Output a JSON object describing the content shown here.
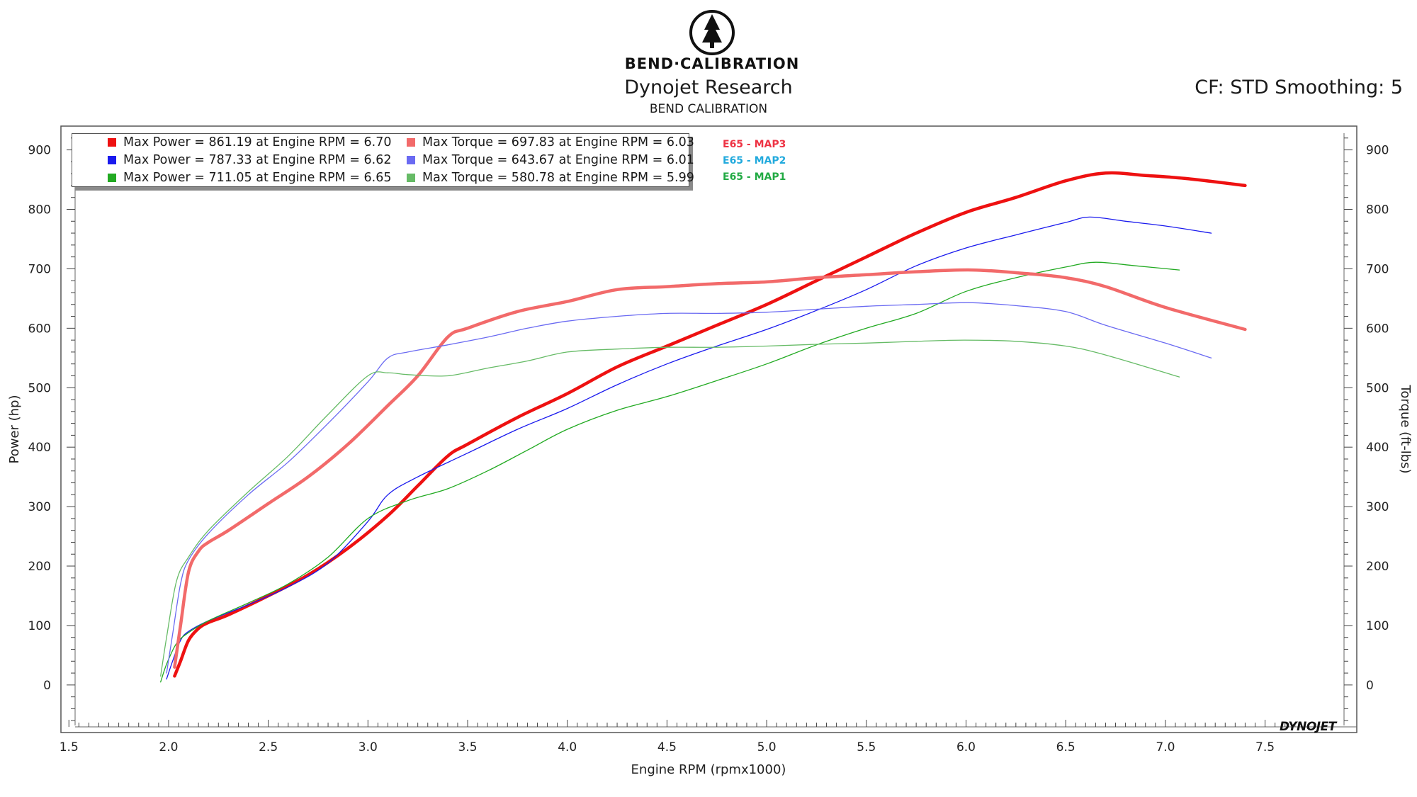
{
  "header": {
    "brand": "BEND·CALIBRATION",
    "title": "Dynojet Research",
    "subtitle": "BEND CALIBRATION",
    "correction": "CF: STD Smoothing: 5",
    "footer_logo": "DYNOJET"
  },
  "legend": {
    "power": [
      {
        "label": "Max Power = 861.19 at Engine RPM = 6.70",
        "color": "#ee1111"
      },
      {
        "label": "Max Power = 787.33 at Engine RPM = 6.62",
        "color": "#1a1aee"
      },
      {
        "label": "Max Power = 711.05 at Engine RPM = 6.65",
        "color": "#22aa22"
      }
    ],
    "torque": [
      {
        "label": "Max Torque = 697.83 at Engine RPM = 6.03",
        "color": "#f26a6a"
      },
      {
        "label": "Max Torque = 643.67 at Engine RPM = 6.01",
        "color": "#6a6af2"
      },
      {
        "label": "Max Torque = 580.78 at Engine RPM = 5.99",
        "color": "#66bb66"
      }
    ]
  },
  "map_labels": [
    {
      "text": "E65 - MAP3",
      "color": "#ee3344"
    },
    {
      "text": "E65 - MAP2",
      "color": "#22aadd"
    },
    {
      "text": "E65 - MAP1",
      "color": "#22aa44"
    }
  ],
  "chart_data": {
    "type": "line",
    "title": "Dynojet Research",
    "xlabel": "Engine RPM (rpmx1000)",
    "ylabel": "Power (hp)",
    "y2label": "Torque (ft-lbs)",
    "xlim": [
      1.46,
      7.96
    ],
    "ylim": [
      -80,
      940
    ],
    "xticks": [
      1.5,
      2.0,
      2.5,
      3.0,
      3.5,
      4.0,
      4.5,
      5.0,
      5.5,
      6.0,
      6.5,
      7.0,
      7.5
    ],
    "xtick_labels": [
      "1.5",
      "2.0",
      "2.5",
      "3.0",
      "3.5",
      "4.0",
      "4.5",
      "5.0",
      "5.5",
      "6.0",
      "6.5",
      "7.0",
      "7.5"
    ],
    "yticks": [
      0,
      100,
      200,
      300,
      400,
      500,
      600,
      700,
      800,
      900
    ],
    "ytick_labels": [
      "0",
      "100",
      "200",
      "300",
      "400",
      "500",
      "600",
      "700",
      "800",
      "900"
    ],
    "grid": true,
    "series": [
      {
        "name": "E65 - MAP3 Power",
        "color": "#ee1111",
        "width": 4.5,
        "x": [
          2.03,
          2.06,
          2.1,
          2.15,
          2.2,
          2.3,
          2.5,
          2.7,
          2.9,
          3.1,
          3.25,
          3.4,
          3.5,
          3.75,
          4.0,
          4.25,
          4.5,
          4.75,
          5.0,
          5.25,
          5.5,
          5.75,
          6.0,
          6.25,
          6.5,
          6.7,
          6.9,
          7.1,
          7.4
        ],
        "y": [
          15,
          40,
          75,
          95,
          105,
          118,
          150,
          185,
          230,
          285,
          335,
          385,
          405,
          450,
          490,
          535,
          570,
          605,
          640,
          680,
          720,
          760,
          795,
          820,
          848,
          861,
          857,
          852,
          840
        ]
      },
      {
        "name": "E65 - MAP2 Power",
        "color": "#1a1aee",
        "width": 1.3,
        "x": [
          1.99,
          2.02,
          2.06,
          2.1,
          2.2,
          2.4,
          2.6,
          2.8,
          3.0,
          3.1,
          3.25,
          3.5,
          3.75,
          4.0,
          4.25,
          4.5,
          4.75,
          5.0,
          5.25,
          5.5,
          5.75,
          6.0,
          6.25,
          6.5,
          6.62,
          6.8,
          7.0,
          7.23
        ],
        "y": [
          10,
          40,
          75,
          90,
          108,
          135,
          165,
          205,
          275,
          320,
          350,
          390,
          430,
          465,
          505,
          540,
          570,
          598,
          630,
          665,
          705,
          735,
          757,
          778,
          787,
          780,
          772,
          760
        ]
      },
      {
        "name": "E65 - MAP1 Power",
        "color": "#22aa22",
        "width": 1.3,
        "x": [
          1.96,
          1.99,
          2.04,
          2.1,
          2.2,
          2.4,
          2.6,
          2.8,
          3.0,
          3.2,
          3.4,
          3.6,
          3.8,
          4.0,
          4.25,
          4.5,
          4.75,
          5.0,
          5.25,
          5.5,
          5.75,
          6.0,
          6.25,
          6.5,
          6.65,
          6.85,
          7.07
        ],
        "y": [
          5,
          35,
          70,
          88,
          108,
          138,
          170,
          215,
          280,
          310,
          330,
          360,
          395,
          430,
          462,
          485,
          512,
          540,
          572,
          600,
          625,
          662,
          685,
          703,
          711,
          705,
          698
        ]
      },
      {
        "name": "E65 - MAP3 Torque",
        "color": "#f26a6a",
        "width": 4.5,
        "x": [
          2.03,
          2.06,
          2.1,
          2.15,
          2.2,
          2.3,
          2.5,
          2.7,
          2.9,
          3.1,
          3.25,
          3.4,
          3.5,
          3.75,
          4.0,
          4.25,
          4.5,
          4.75,
          5.0,
          5.25,
          5.5,
          5.75,
          6.03,
          6.3,
          6.5,
          6.7,
          7.0,
          7.4
        ],
        "y": [
          30,
          100,
          190,
          225,
          240,
          260,
          305,
          350,
          405,
          470,
          520,
          585,
          600,
          628,
          645,
          665,
          670,
          675,
          678,
          685,
          690,
          695,
          698,
          692,
          685,
          670,
          635,
          598
        ]
      },
      {
        "name": "E65 - MAP2 Torque",
        "color": "#6a6af2",
        "width": 1.3,
        "x": [
          1.99,
          2.02,
          2.06,
          2.1,
          2.2,
          2.4,
          2.6,
          2.8,
          3.0,
          3.1,
          3.2,
          3.4,
          3.6,
          3.8,
          4.0,
          4.25,
          4.5,
          4.75,
          5.0,
          5.25,
          5.5,
          5.75,
          6.01,
          6.25,
          6.5,
          6.7,
          7.0,
          7.23
        ],
        "y": [
          20,
          85,
          170,
          210,
          255,
          320,
          375,
          440,
          510,
          550,
          560,
          572,
          585,
          600,
          612,
          620,
          625,
          625,
          627,
          632,
          637,
          640,
          643,
          638,
          628,
          605,
          575,
          550
        ]
      },
      {
        "name": "E65 - MAP1 Torque",
        "color": "#66bb66",
        "width": 1.3,
        "x": [
          1.96,
          1.99,
          2.04,
          2.1,
          2.2,
          2.4,
          2.6,
          2.8,
          3.0,
          3.1,
          3.2,
          3.4,
          3.6,
          3.8,
          4.0,
          4.25,
          4.5,
          4.75,
          5.0,
          5.25,
          5.5,
          5.75,
          5.99,
          6.25,
          6.5,
          6.7,
          7.07
        ],
        "y": [
          15,
          80,
          175,
          215,
          260,
          325,
          385,
          455,
          520,
          525,
          522,
          520,
          533,
          545,
          560,
          565,
          568,
          568,
          570,
          573,
          575,
          578,
          580,
          578,
          570,
          555,
          518
        ]
      }
    ]
  }
}
